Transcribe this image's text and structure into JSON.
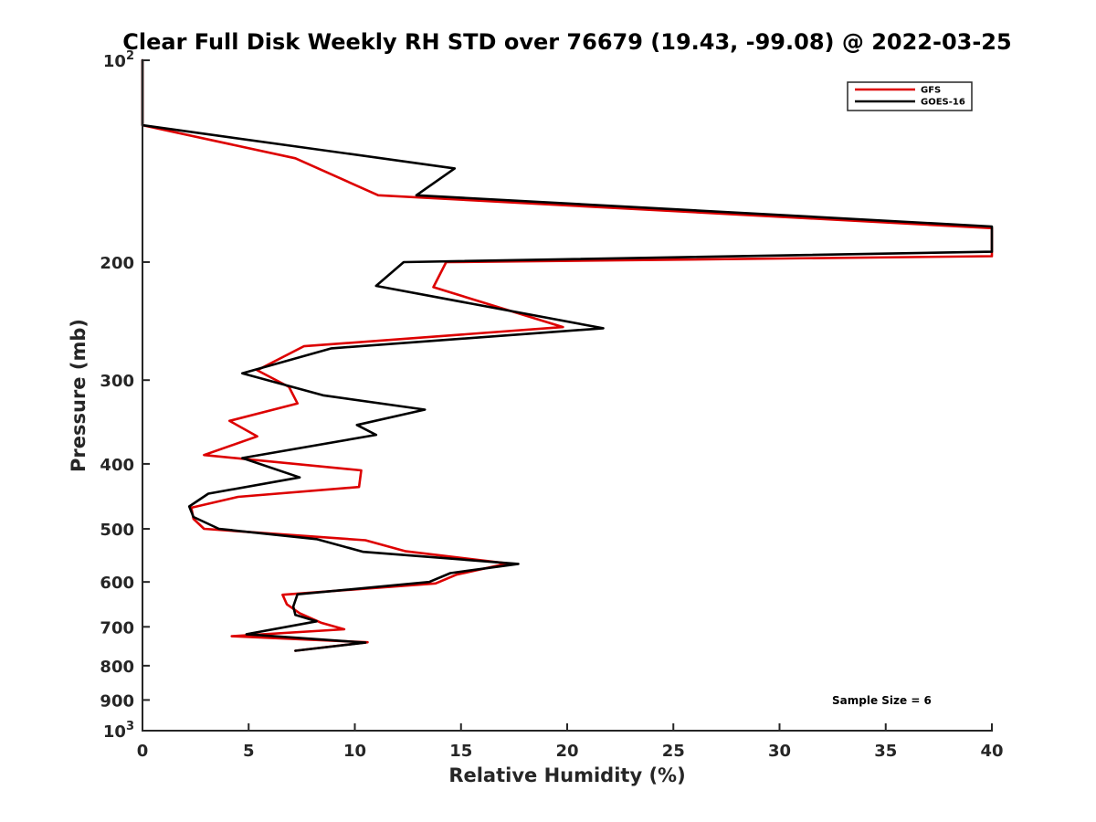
{
  "chart_data": {
    "type": "line",
    "title": "Clear Full Disk Weekly RH STD over 76679 (19.43, -99.08) @ 2022-03-25",
    "xlabel": "Relative Humidity (%)",
    "ylabel": "Pressure (mb)",
    "xlim": [
      0,
      40
    ],
    "ylim": [
      100,
      1000
    ],
    "y_scale": "log",
    "y_reversed": true,
    "grid": false,
    "legend_position": "top-right",
    "x_ticks": [
      0,
      5,
      10,
      15,
      20,
      25,
      30,
      35,
      40
    ],
    "x_tick_labels": [
      "0",
      "5",
      "10",
      "15",
      "20",
      "25",
      "30",
      "35",
      "40"
    ],
    "y_ticks": [
      100,
      200,
      300,
      400,
      500,
      600,
      700,
      800,
      900,
      1000
    ],
    "y_tick_labels": [
      {
        "base": "10",
        "exp": "2"
      },
      {
        "base": "200",
        "exp": ""
      },
      {
        "base": "300",
        "exp": ""
      },
      {
        "base": "400",
        "exp": ""
      },
      {
        "base": "500",
        "exp": ""
      },
      {
        "base": "600",
        "exp": ""
      },
      {
        "base": "700",
        "exp": ""
      },
      {
        "base": "800",
        "exp": ""
      },
      {
        "base": "900",
        "exp": ""
      },
      {
        "base": "10",
        "exp": "3"
      }
    ],
    "series": [
      {
        "name": "GFS",
        "color": "#dd0000",
        "points": [
          [
            0,
            100
          ],
          [
            0,
            125
          ],
          [
            7.2,
            140
          ],
          [
            11.1,
            159
          ],
          [
            40,
            178
          ],
          [
            40,
            196
          ],
          [
            14.3,
            200
          ],
          [
            13.7,
            218
          ],
          [
            19.8,
            250
          ],
          [
            7.6,
            267
          ],
          [
            5.4,
            290
          ],
          [
            6.9,
            307
          ],
          [
            7.3,
            325
          ],
          [
            4.1,
            345
          ],
          [
            5.4,
            364
          ],
          [
            2.9,
            388
          ],
          [
            10.3,
            409
          ],
          [
            10.2,
            433
          ],
          [
            4.5,
            448
          ],
          [
            2.3,
            465
          ],
          [
            2.4,
            483
          ],
          [
            2.9,
            500
          ],
          [
            10.5,
            520
          ],
          [
            12.4,
            540
          ],
          [
            17.2,
            563
          ],
          [
            14.8,
            585
          ],
          [
            13.8,
            603
          ],
          [
            6.6,
            627
          ],
          [
            6.8,
            648
          ],
          [
            7.4,
            668
          ],
          [
            8.4,
            690
          ],
          [
            9.5,
            706
          ],
          [
            4.2,
            723
          ],
          [
            10.6,
            738
          ],
          [
            7.2,
            760
          ]
        ]
      },
      {
        "name": "GOES-16",
        "color": "#000000",
        "points": [
          [
            0,
            100
          ],
          [
            0,
            125
          ],
          [
            14.7,
            145
          ],
          [
            12.9,
            159
          ],
          [
            40,
            177
          ],
          [
            40,
            193
          ],
          [
            12.3,
            200
          ],
          [
            11.0,
            217
          ],
          [
            21.7,
            251
          ],
          [
            8.9,
            269
          ],
          [
            4.7,
            293
          ],
          [
            8.5,
            316
          ],
          [
            13.3,
            332
          ],
          [
            10.1,
            350
          ],
          [
            11.0,
            362
          ],
          [
            4.7,
            392
          ],
          [
            7.4,
            419
          ],
          [
            3.1,
            443
          ],
          [
            2.2,
            463
          ],
          [
            2.4,
            480
          ],
          [
            3.6,
            500
          ],
          [
            8.2,
            518
          ],
          [
            10.4,
            541
          ],
          [
            17.7,
            564
          ],
          [
            14.5,
            582
          ],
          [
            13.5,
            600
          ],
          [
            7.3,
            626
          ],
          [
            7.1,
            653
          ],
          [
            7.2,
            672
          ],
          [
            8.2,
            687
          ],
          [
            4.9,
            718
          ],
          [
            10.5,
            739
          ],
          [
            7.2,
            760
          ]
        ]
      }
    ],
    "annotations": [
      "Sample Size = 6"
    ]
  }
}
